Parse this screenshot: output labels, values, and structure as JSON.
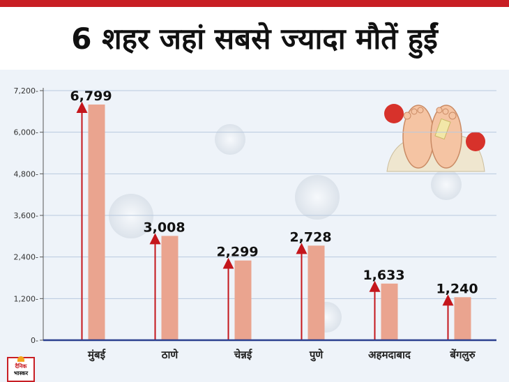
{
  "title": "6 शहर जहां सबसे ज्यादा मौतें हुईं",
  "brand": {
    "line1": "दैनिक",
    "line2": "भास्कर"
  },
  "colors": {
    "bar": "#eaa48f",
    "arrow": "#c4161c",
    "axis": "#2a3f8f",
    "grid": "#b8c9de",
    "title_bar": "#c81e24"
  },
  "chart_data": {
    "type": "bar",
    "title": "6 शहर जहां सबसे ज्यादा मौतें हुईं",
    "categories": [
      "मुंबई",
      "ठाणे",
      "चेन्नई",
      "पुणे",
      "अहमदाबाद",
      "बेंगलुरु"
    ],
    "values": [
      6799,
      3008,
      2299,
      2728,
      1633,
      1240
    ],
    "value_labels": [
      "6,799",
      "3,008",
      "2,299",
      "2,728",
      "1,633",
      "1,240"
    ],
    "yticks": [
      0,
      1200,
      2400,
      3600,
      4800,
      6000,
      7200
    ],
    "ytick_labels": [
      "0",
      "1,200",
      "2,400",
      "3,600",
      "4,800",
      "6,000",
      "7,200"
    ],
    "ylim": [
      0,
      7200
    ],
    "xlabel": "",
    "ylabel": "",
    "grid": true,
    "legend": "none"
  }
}
